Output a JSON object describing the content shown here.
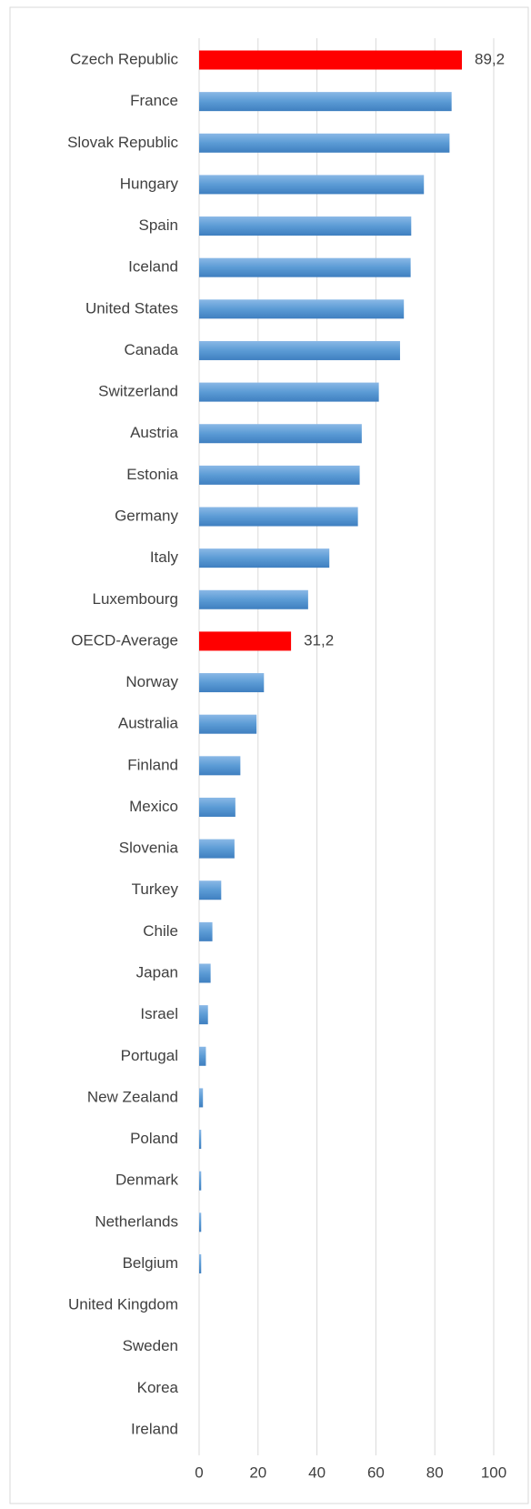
{
  "chart_data": {
    "type": "barh",
    "categories": [
      "Czech Republic",
      "France",
      "Slovak Republic",
      "Hungary",
      "Spain",
      "Iceland",
      "United States",
      "Canada",
      "Switzerland",
      "Austria",
      "Estonia",
      "Germany",
      "Italy",
      "Luxembourg",
      "OECD-Average",
      "Norway",
      "Australia",
      "Finland",
      "Mexico",
      "Slovenia",
      "Turkey",
      "Chile",
      "Japan",
      "Israel",
      "Portugal",
      "New Zealand",
      "Poland",
      "Denmark",
      "Netherlands",
      "Belgium",
      "United Kingdom",
      "Sweden",
      "Korea",
      "Ireland"
    ],
    "values": [
      89.2,
      85.7,
      85,
      76.3,
      72,
      71.8,
      69.5,
      68.2,
      61,
      55.2,
      54.5,
      53.9,
      44.2,
      37,
      31.2,
      22,
      19.5,
      14,
      12.3,
      12,
      7.5,
      4.5,
      3.9,
      3,
      2.3,
      1.3,
      0.7,
      0.7,
      0.7,
      0.7,
      0,
      0,
      0,
      0
    ],
    "value_labels": [
      "89,2",
      null,
      null,
      null,
      null,
      null,
      null,
      null,
      null,
      null,
      null,
      null,
      null,
      null,
      "31,2",
      null,
      null,
      null,
      null,
      null,
      null,
      null,
      null,
      null,
      null,
      null,
      null,
      null,
      null,
      null,
      null,
      null,
      null,
      null
    ],
    "colors": [
      "#ff0000",
      "#5b9bd5",
      "#5b9bd5",
      "#5b9bd5",
      "#5b9bd5",
      "#5b9bd5",
      "#5b9bd5",
      "#5b9bd5",
      "#5b9bd5",
      "#5b9bd5",
      "#5b9bd5",
      "#5b9bd5",
      "#5b9bd5",
      "#5b9bd5",
      "#ff0000",
      "#5b9bd5",
      "#5b9bd5",
      "#5b9bd5",
      "#5b9bd5",
      "#5b9bd5",
      "#5b9bd5",
      "#5b9bd5",
      "#5b9bd5",
      "#5b9bd5",
      "#5b9bd5",
      "#5b9bd5",
      "#5b9bd5",
      "#5b9bd5",
      "#5b9bd5",
      "#5b9bd5",
      "#5b9bd5",
      "#5b9bd5",
      "#5b9bd5",
      "#5b9bd5"
    ],
    "xlim": [
      0,
      100
    ],
    "xticks": [
      0,
      20,
      40,
      60,
      80,
      100
    ],
    "grid": true
  }
}
